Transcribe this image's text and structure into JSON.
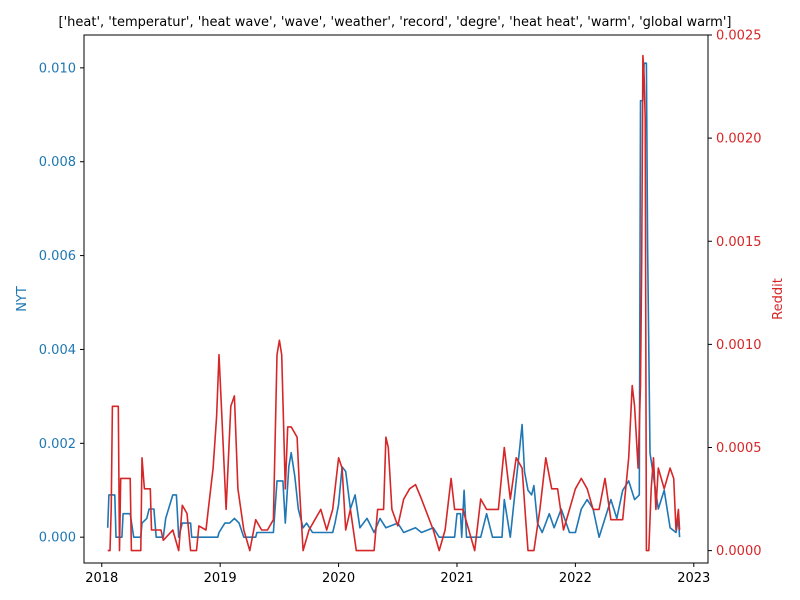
{
  "chart_data": {
    "type": "line",
    "title": "['heat', 'temperatur', 'heat wave', 'wave', 'weather', 'record', 'degre', 'heat heat', 'warm', 'global warm']",
    "xlabel": "",
    "x_ticks": [
      "2018",
      "2019",
      "2020",
      "2021",
      "2022",
      "2023"
    ],
    "x_range": [
      2017.85,
      2023.12
    ],
    "left_axis": {
      "label": "NYT",
      "color": "#1f77b4",
      "ylim": [
        -0.00055,
        0.0107
      ],
      "ticks": [
        "0.000",
        "0.002",
        "0.004",
        "0.006",
        "0.008",
        "0.010"
      ]
    },
    "right_axis": {
      "label": "Reddit",
      "color": "#d62728",
      "ylim": [
        -6e-05,
        0.0025
      ],
      "ticks": [
        "0.0000",
        "0.0005",
        "0.0010",
        "0.0015",
        "0.0020",
        "0.0025"
      ]
    },
    "grid": false,
    "series": [
      {
        "axis": "left",
        "color": "#1f77b4",
        "points": [
          [
            2018.05,
            0.0002
          ],
          [
            2018.06,
            0.0009
          ],
          [
            2018.11,
            0.0009
          ],
          [
            2018.12,
            0.0
          ],
          [
            2018.17,
            0.0
          ],
          [
            2018.18,
            0.0005
          ],
          [
            2018.24,
            0.0005
          ],
          [
            2018.27,
            0.0
          ],
          [
            2018.33,
            0.0
          ],
          [
            2018.34,
            0.0003
          ],
          [
            2018.38,
            0.0004
          ],
          [
            2018.4,
            0.0006
          ],
          [
            2018.44,
            0.0006
          ],
          [
            2018.46,
            0.0
          ],
          [
            2018.52,
            0.0
          ],
          [
            2018.54,
            0.0004
          ],
          [
            2018.6,
            0.0009
          ],
          [
            2018.63,
            0.0009
          ],
          [
            2018.65,
            0.0
          ],
          [
            2018.68,
            0.0003
          ],
          [
            2018.75,
            0.0003
          ],
          [
            2018.76,
            0.0
          ],
          [
            2018.98,
            0.0
          ],
          [
            2018.99,
            0.0001
          ],
          [
            2019.04,
            0.0003
          ],
          [
            2019.08,
            0.0003
          ],
          [
            2019.12,
            0.0004
          ],
          [
            2019.16,
            0.0003
          ],
          [
            2019.2,
            0.0
          ],
          [
            2019.3,
            0.0
          ],
          [
            2019.31,
            0.0001
          ],
          [
            2019.45,
            0.0001
          ],
          [
            2019.48,
            0.0012
          ],
          [
            2019.53,
            0.0012
          ],
          [
            2019.55,
            0.0003
          ],
          [
            2019.58,
            0.0015
          ],
          [
            2019.6,
            0.0018
          ],
          [
            2019.63,
            0.0013
          ],
          [
            2019.66,
            0.0006
          ],
          [
            2019.7,
            0.0002
          ],
          [
            2019.73,
            0.0003
          ],
          [
            2019.78,
            0.0001
          ],
          [
            2019.95,
            0.0001
          ],
          [
            2019.97,
            0.0003
          ],
          [
            2020.0,
            0.0007
          ],
          [
            2020.03,
            0.0015
          ],
          [
            2020.06,
            0.0014
          ],
          [
            2020.1,
            0.0006
          ],
          [
            2020.14,
            0.0009
          ],
          [
            2020.18,
            0.0002
          ],
          [
            2020.24,
            0.0004
          ],
          [
            2020.3,
            0.0001
          ],
          [
            2020.35,
            0.0004
          ],
          [
            2020.4,
            0.0002
          ],
          [
            2020.5,
            0.0003
          ],
          [
            2020.55,
            0.0001
          ],
          [
            2020.65,
            0.0002
          ],
          [
            2020.7,
            0.0001
          ],
          [
            2020.8,
            0.0002
          ],
          [
            2020.85,
            0.0
          ],
          [
            2020.98,
            0.0
          ],
          [
            2021.0,
            0.0005
          ],
          [
            2021.03,
            0.0005
          ],
          [
            2021.04,
            0.0
          ],
          [
            2021.06,
            0.001
          ],
          [
            2021.08,
            0.0
          ],
          [
            2021.2,
            0.0
          ],
          [
            2021.25,
            0.0005
          ],
          [
            2021.3,
            0.0
          ],
          [
            2021.38,
            0.0
          ],
          [
            2021.4,
            0.0008
          ],
          [
            2021.45,
            0.0
          ],
          [
            2021.5,
            0.0012
          ],
          [
            2021.53,
            0.0019
          ],
          [
            2021.55,
            0.0024
          ],
          [
            2021.57,
            0.0014
          ],
          [
            2021.6,
            0.001
          ],
          [
            2021.63,
            0.0009
          ],
          [
            2021.65,
            0.0011
          ],
          [
            2021.68,
            0.0003
          ],
          [
            2021.72,
            0.0001
          ],
          [
            2021.78,
            0.0005
          ],
          [
            2021.82,
            0.0002
          ],
          [
            2021.88,
            0.0006
          ],
          [
            2021.95,
            0.0001
          ],
          [
            2022.0,
            0.0001
          ],
          [
            2022.05,
            0.0006
          ],
          [
            2022.1,
            0.0008
          ],
          [
            2022.15,
            0.0006
          ],
          [
            2022.2,
            0.0
          ],
          [
            2022.25,
            0.0004
          ],
          [
            2022.3,
            0.0008
          ],
          [
            2022.35,
            0.0004
          ],
          [
            2022.4,
            0.001
          ],
          [
            2022.45,
            0.0012
          ],
          [
            2022.5,
            0.0008
          ],
          [
            2022.54,
            0.0009
          ],
          [
            2022.55,
            0.0093
          ],
          [
            2022.57,
            0.0093
          ],
          [
            2022.58,
            0.0101
          ],
          [
            2022.6,
            0.0101
          ],
          [
            2022.61,
            0.0062
          ],
          [
            2022.63,
            0.0018
          ],
          [
            2022.66,
            0.0013
          ],
          [
            2022.7,
            0.0006
          ],
          [
            2022.75,
            0.001
          ],
          [
            2022.8,
            0.0002
          ],
          [
            2022.85,
            0.0001
          ],
          [
            2022.87,
            0.0004
          ],
          [
            2022.88,
            0.0
          ]
        ]
      },
      {
        "axis": "right",
        "color": "#d62728",
        "points": [
          [
            2018.05,
            0.0
          ],
          [
            2018.07,
            0.0
          ],
          [
            2018.08,
            0.0002
          ],
          [
            2018.09,
            0.0007
          ],
          [
            2018.14,
            0.0007
          ],
          [
            2018.15,
            0.0
          ],
          [
            2018.16,
            0.00035
          ],
          [
            2018.2,
            0.00035
          ],
          [
            2018.24,
            0.00035
          ],
          [
            2018.25,
            0.0
          ],
          [
            2018.33,
            0.0
          ],
          [
            2018.34,
            0.00045
          ],
          [
            2018.36,
            0.0003
          ],
          [
            2018.41,
            0.0003
          ],
          [
            2018.42,
            0.0001
          ],
          [
            2018.5,
            0.0001
          ],
          [
            2018.52,
            5e-05
          ],
          [
            2018.6,
            0.0001
          ],
          [
            2018.65,
            0.0
          ],
          [
            2018.68,
            0.00022
          ],
          [
            2018.72,
            0.00018
          ],
          [
            2018.75,
            0.0
          ],
          [
            2018.8,
            0.0
          ],
          [
            2018.82,
            0.00012
          ],
          [
            2018.88,
            0.0001
          ],
          [
            2018.9,
            0.0002
          ],
          [
            2018.94,
            0.0004
          ],
          [
            2018.97,
            0.00065
          ],
          [
            2018.99,
            0.00095
          ],
          [
            2019.01,
            0.0007
          ],
          [
            2019.05,
            0.0002
          ],
          [
            2019.09,
            0.0007
          ],
          [
            2019.12,
            0.00075
          ],
          [
            2019.15,
            0.0003
          ],
          [
            2019.2,
            0.0001
          ],
          [
            2019.25,
            0.0
          ],
          [
            2019.3,
            0.00015
          ],
          [
            2019.35,
            0.0001
          ],
          [
            2019.4,
            0.0001
          ],
          [
            2019.45,
            0.00015
          ],
          [
            2019.48,
            0.00095
          ],
          [
            2019.5,
            0.00102
          ],
          [
            2019.52,
            0.00095
          ],
          [
            2019.55,
            0.0003
          ],
          [
            2019.57,
            0.0006
          ],
          [
            2019.6,
            0.0006
          ],
          [
            2019.65,
            0.00055
          ],
          [
            2019.67,
            0.0003
          ],
          [
            2019.7,
            0.0
          ],
          [
            2019.75,
            0.0001
          ],
          [
            2019.8,
            0.00015
          ],
          [
            2019.85,
            0.0002
          ],
          [
            2019.9,
            0.0001
          ],
          [
            2019.95,
            0.0002
          ],
          [
            2020.0,
            0.00045
          ],
          [
            2020.03,
            0.0004
          ],
          [
            2020.06,
            0.0001
          ],
          [
            2020.1,
            0.0002
          ],
          [
            2020.15,
            0.0
          ],
          [
            2020.3,
            0.0
          ],
          [
            2020.33,
            0.0002
          ],
          [
            2020.38,
            0.0002
          ],
          [
            2020.4,
            0.00055
          ],
          [
            2020.42,
            0.0005
          ],
          [
            2020.45,
            0.0002
          ],
          [
            2020.5,
            0.00012
          ],
          [
            2020.55,
            0.00025
          ],
          [
            2020.6,
            0.0003
          ],
          [
            2020.65,
            0.00032
          ],
          [
            2020.7,
            0.00025
          ],
          [
            2020.8,
            0.0001
          ],
          [
            2020.85,
            0.0
          ],
          [
            2020.9,
            0.0001
          ],
          [
            2020.95,
            0.00035
          ],
          [
            2020.98,
            0.0002
          ],
          [
            2021.0,
            0.0002
          ],
          [
            2021.05,
            0.0002
          ],
          [
            2021.1,
            0.0001
          ],
          [
            2021.15,
            0.0
          ],
          [
            2021.2,
            0.00025
          ],
          [
            2021.25,
            0.0002
          ],
          [
            2021.3,
            0.0002
          ],
          [
            2021.35,
            0.0002
          ],
          [
            2021.4,
            0.0005
          ],
          [
            2021.45,
            0.00025
          ],
          [
            2021.5,
            0.00045
          ],
          [
            2021.55,
            0.0004
          ],
          [
            2021.58,
            0.00015
          ],
          [
            2021.6,
            0.0
          ],
          [
            2021.65,
            0.0
          ],
          [
            2021.7,
            0.0002
          ],
          [
            2021.75,
            0.00045
          ],
          [
            2021.8,
            0.0003
          ],
          [
            2021.85,
            0.0003
          ],
          [
            2021.9,
            0.0001
          ],
          [
            2021.95,
            0.0002
          ],
          [
            2022.0,
            0.0003
          ],
          [
            2022.05,
            0.00035
          ],
          [
            2022.1,
            0.0003
          ],
          [
            2022.15,
            0.0002
          ],
          [
            2022.2,
            0.0002
          ],
          [
            2022.25,
            0.00035
          ],
          [
            2022.3,
            0.00015
          ],
          [
            2022.35,
            0.00015
          ],
          [
            2022.4,
            0.00015
          ],
          [
            2022.45,
            0.00045
          ],
          [
            2022.48,
            0.0008
          ],
          [
            2022.5,
            0.0007
          ],
          [
            2022.53,
            0.0004
          ],
          [
            2022.55,
            0.0008
          ],
          [
            2022.56,
            0.0014
          ],
          [
            2022.57,
            0.0024
          ],
          [
            2022.58,
            0.0023
          ],
          [
            2022.59,
            0.0021
          ],
          [
            2022.6,
            0.0
          ],
          [
            2022.62,
            0.0
          ],
          [
            2022.64,
            0.0003
          ],
          [
            2022.66,
            0.00045
          ],
          [
            2022.68,
            0.0002
          ],
          [
            2022.7,
            0.0004
          ],
          [
            2022.75,
            0.0003
          ],
          [
            2022.8,
            0.0004
          ],
          [
            2022.83,
            0.00035
          ],
          [
            2022.85,
            0.0001
          ],
          [
            2022.87,
            0.0002
          ],
          [
            2022.88,
            0.0001
          ]
        ]
      }
    ]
  }
}
